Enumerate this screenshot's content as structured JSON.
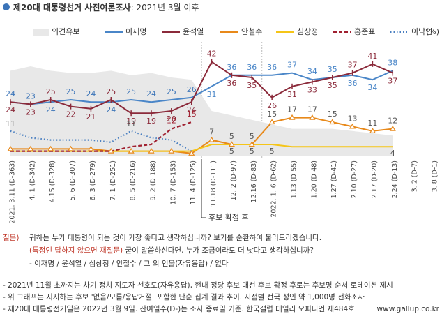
{
  "chart_data": {
    "type": "line",
    "title": "제20대 대통령선거 사전여론조사",
    "subtitle": ": 2021년 3월 이후",
    "legend_unit": "(%)",
    "annotation": "후보 확정 후",
    "categories": [
      "2021. 3.11 (D-363)",
      "4. 1 (D-342)",
      "4.15 (D-328)",
      "5. 6 (D-307)",
      "6. 3 (D-279)",
      "7. 1 (D-251)",
      "8. 5 (D-216)",
      "9. 2 (D-188)",
      "10. 7 (D-153)",
      "11. 4 (D-125)",
      "11.18 (D-111)",
      "12. 2 (D-97)",
      "12.16 (D-83)",
      "2022. 1. 6 (D-62)",
      "1.13 (D-55)",
      "1.20 (D-48)",
      "1.27 (D-41)",
      "2.10 (D-27)",
      "2.17 (D-20)",
      "2.24 (D-13)",
      "3. 2 (D-7)",
      "3. 8 (D-1)"
    ],
    "ylim": [
      0,
      50
    ],
    "series": [
      {
        "name": "의견유보",
        "style": "area",
        "color": "#e8e8e8",
        "values": [
          38,
          40,
          38,
          37,
          37,
          38,
          36,
          37,
          35,
          34,
          20,
          18,
          16,
          14,
          12,
          12,
          12,
          11,
          10,
          9,
          null,
          null
        ]
      },
      {
        "name": "이재명",
        "style": "solid",
        "color": "#4a86c8",
        "values": [
          24,
          23,
          24,
          25,
          24,
          24,
          25,
          24,
          25,
          26,
          31,
          36,
          36,
          36,
          37,
          34,
          35,
          36,
          34,
          38,
          null,
          null
        ]
      },
      {
        "name": "윤석열",
        "style": "solid",
        "color": "#8b2a3a",
        "values": [
          24,
          23,
          25,
          22,
          21,
          25,
          19,
          19,
          20,
          24,
          42,
          36,
          35,
          26,
          31,
          33,
          35,
          37,
          41,
          37,
          null,
          null
        ]
      },
      {
        "name": "안철수",
        "style": "solid",
        "color": "#e8891a",
        "values": [
          3,
          3,
          3,
          3,
          3,
          2,
          2,
          2,
          2,
          1,
          7,
          5,
          5,
          15,
          17,
          17,
          15,
          13,
          11,
          12,
          null,
          null
        ]
      },
      {
        "name": "심상정",
        "style": "solid",
        "color": "#f5c518",
        "values": [
          2,
          2,
          2,
          2,
          2,
          2,
          2,
          2,
          2,
          2,
          5,
          5,
          5,
          5,
          4,
          4,
          4,
          4,
          4,
          4,
          null,
          null
        ]
      },
      {
        "name": "홍준표",
        "style": "dashed",
        "color": "#a02030",
        "values": [
          2,
          2,
          2,
          2,
          2,
          2,
          4,
          5,
          12,
          15,
          null,
          null,
          null,
          null,
          null,
          null,
          null,
          null,
          null,
          null,
          null,
          null
        ]
      },
      {
        "name": "이낙연",
        "style": "dotted",
        "color": "#4a7fc0",
        "values": [
          11,
          8,
          7,
          7,
          7,
          6,
          11,
          8,
          7,
          2,
          null,
          null,
          null,
          null,
          null,
          null,
          null,
          null,
          null,
          null,
          null,
          null
        ]
      }
    ],
    "question": {
      "label": "질문)",
      "line1": "귀하는 누가 대통령이 되는 것이 가장 좋다고 생각하십니까? 보기를 순환하여 불러드리겠습니다.",
      "line2_highlight": "(특정인 답하지 않으면 재질문)",
      "line2": " 굳이 말씀하신다면, 누가 조금이라도 더 낫다고 생각하십니까?",
      "line3": "- 이재명 / 윤석열 / 심상정 / 안철수 / 그 외 인물(자유응답) / 없다"
    },
    "notes": [
      "- 2021년 11월 초까지는 차기 정치 지도자 선호도(자유응답), 현내 정당 후보 대선 후보 확정 후로는 후보명 순서 로테이션 제시",
      "- 위 그래프는 지지하는 후보 '없음/모름/응답거절' 포함한 단순 집계 결과 추이. 시점별 전국 성인 약 1,000명 전화조사",
      "- 제20대 대통령선거일은 2022년 3월 9일. 잔여일수(D-)는 조사 종료일 기준. 한국갤럽 데일리 오피니언 제484호"
    ],
    "source_url": "www.gallup.co.kr"
  }
}
